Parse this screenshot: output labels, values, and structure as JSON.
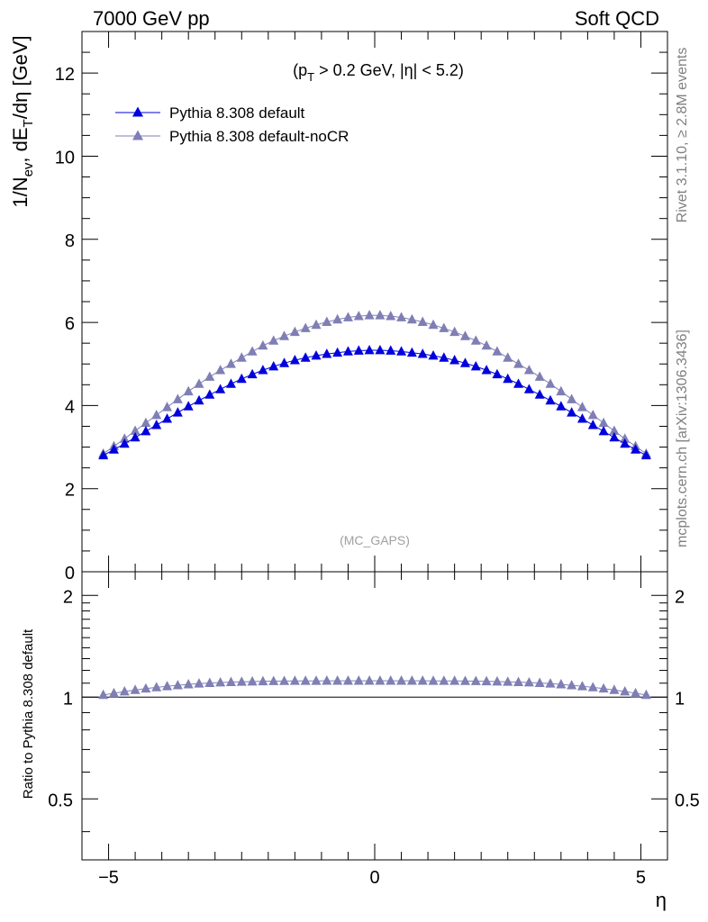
{
  "header": {
    "left_label": "7000 GeV pp",
    "right_label": "Soft QCD"
  },
  "side_labels": {
    "rivet": "Rivet 3.1.10, ≥ 2.8M events",
    "mcplots": "mcplots.cern.ch [arXiv:1306.3436]"
  },
  "chart_data": [
    {
      "type": "scatter",
      "panel": "main",
      "cut_label": "(p_T > 0.2 GeV, |η| < 5.2)",
      "watermark": "(MC_GAPS)",
      "ylabel": "1/N_ev, dE_T/dη [GeV]",
      "xlim": [
        -5.5,
        5.5
      ],
      "ylim": [
        0,
        13
      ],
      "y_ticks": [
        "0",
        "2",
        "4",
        "6",
        "8",
        "10",
        "12"
      ],
      "legend_position": "top-left",
      "x": [
        -5.1,
        -4.9,
        -4.7,
        -4.5,
        -4.3,
        -4.1,
        -3.9,
        -3.7,
        -3.5,
        -3.3,
        -3.1,
        -2.9,
        -2.7,
        -2.5,
        -2.3,
        -2.1,
        -1.9,
        -1.7,
        -1.5,
        -1.3,
        -1.1,
        -0.9,
        -0.7,
        -0.5,
        -0.3,
        -0.1,
        0.1,
        0.3,
        0.5,
        0.7,
        0.9,
        1.1,
        1.3,
        1.5,
        1.7,
        1.9,
        2.1,
        2.3,
        2.5,
        2.7,
        2.9,
        3.1,
        3.3,
        3.5,
        3.7,
        3.9,
        4.1,
        4.3,
        4.5,
        4.7,
        4.9,
        5.1
      ],
      "series": [
        {
          "name": "Pythia 8.308 default",
          "color": "#0000dd",
          "values": [
            2.8,
            2.94,
            3.08,
            3.23,
            3.38,
            3.53,
            3.68,
            3.83,
            3.98,
            4.12,
            4.26,
            4.39,
            4.52,
            4.64,
            4.75,
            4.85,
            4.94,
            5.02,
            5.09,
            5.15,
            5.2,
            5.24,
            5.27,
            5.3,
            5.32,
            5.33,
            5.33,
            5.32,
            5.3,
            5.27,
            5.24,
            5.2,
            5.15,
            5.09,
            5.02,
            4.94,
            4.85,
            4.75,
            4.64,
            4.52,
            4.39,
            4.26,
            4.12,
            3.98,
            3.83,
            3.68,
            3.53,
            3.38,
            3.23,
            3.08,
            2.94,
            2.8
          ]
        },
        {
          "name": "Pythia 8.308 default-noCR",
          "color": "#7f7fb5",
          "values": [
            2.84,
            3.02,
            3.2,
            3.39,
            3.58,
            3.77,
            3.96,
            4.15,
            4.34,
            4.52,
            4.69,
            4.85,
            5.0,
            5.15,
            5.3,
            5.44,
            5.56,
            5.67,
            5.77,
            5.86,
            5.94,
            6.01,
            6.07,
            6.12,
            6.15,
            6.17,
            6.17,
            6.15,
            6.12,
            6.07,
            6.01,
            5.94,
            5.86,
            5.77,
            5.67,
            5.56,
            5.44,
            5.3,
            5.15,
            5.0,
            4.85,
            4.69,
            4.52,
            4.34,
            4.15,
            3.96,
            3.77,
            3.58,
            3.39,
            3.2,
            3.02,
            2.84
          ]
        }
      ]
    },
    {
      "type": "scatter",
      "panel": "ratio",
      "xlabel": "η",
      "ylabel": "Ratio to Pythia 8.308 default",
      "xlim": [
        -5.5,
        5.5
      ],
      "ylim": [
        0.33,
        2.35
      ],
      "y_scale": "log",
      "x_ticks": [
        "−5",
        "0",
        "5"
      ],
      "y_ticks": [
        "0.5",
        "1",
        "2"
      ],
      "reference_line": 1,
      "series": [
        {
          "name": "Pythia 8.308 default-noCR",
          "color": "#7f7fb5",
          "values": [
            1.015,
            1.027,
            1.039,
            1.05,
            1.06,
            1.069,
            1.077,
            1.084,
            1.091,
            1.097,
            1.101,
            1.105,
            1.108,
            1.11,
            1.112,
            1.114,
            1.115,
            1.116,
            1.117,
            1.117,
            1.117,
            1.118,
            1.118,
            1.118,
            1.118,
            1.118,
            1.118,
            1.118,
            1.118,
            1.118,
            1.118,
            1.117,
            1.117,
            1.117,
            1.116,
            1.115,
            1.114,
            1.112,
            1.11,
            1.108,
            1.105,
            1.101,
            1.097,
            1.091,
            1.084,
            1.077,
            1.069,
            1.06,
            1.05,
            1.039,
            1.027,
            1.015
          ]
        }
      ]
    }
  ]
}
